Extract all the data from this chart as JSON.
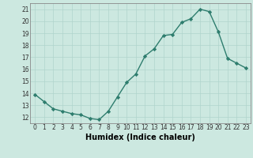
{
  "x": [
    0,
    1,
    2,
    3,
    4,
    5,
    6,
    7,
    8,
    9,
    10,
    11,
    12,
    13,
    14,
    15,
    16,
    17,
    18,
    19,
    20,
    21,
    22,
    23
  ],
  "y": [
    13.9,
    13.3,
    12.7,
    12.5,
    12.3,
    12.2,
    11.9,
    11.8,
    12.5,
    13.7,
    14.9,
    15.6,
    17.1,
    17.7,
    18.8,
    18.9,
    19.9,
    20.2,
    21.0,
    20.8,
    19.1,
    16.9,
    16.5,
    16.1
  ],
  "xlabel": "Humidex (Indice chaleur)",
  "xlim": [
    -0.5,
    23.5
  ],
  "ylim": [
    11.5,
    21.5
  ],
  "yticks": [
    12,
    13,
    14,
    15,
    16,
    17,
    18,
    19,
    20,
    21
  ],
  "xticks": [
    0,
    1,
    2,
    3,
    4,
    5,
    6,
    7,
    8,
    9,
    10,
    11,
    12,
    13,
    14,
    15,
    16,
    17,
    18,
    19,
    20,
    21,
    22,
    23
  ],
  "line_color": "#2e7d6e",
  "marker_color": "#2e7d6e",
  "bg_color": "#cce8e0",
  "grid_color": "#b0d4cc",
  "spine_color": "#888888",
  "tick_label_color": "#333333",
  "xlabel_color": "#000000",
  "xlabel_fontsize": 7,
  "tick_fontsize": 5.5,
  "linewidth": 1.0,
  "markersize": 2.2
}
